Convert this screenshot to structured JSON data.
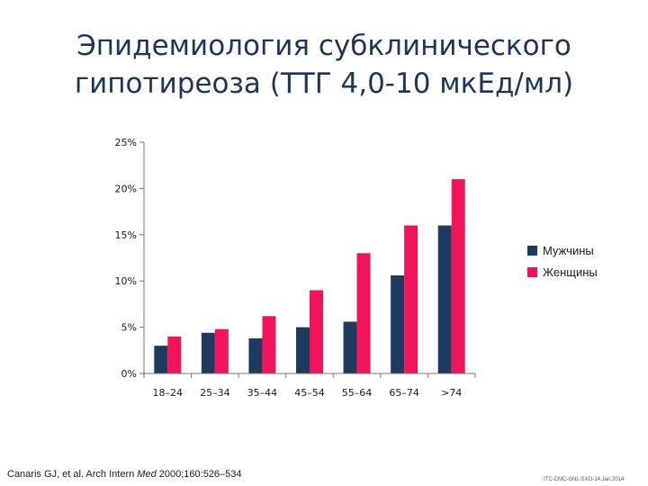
{
  "title": {
    "line1": "Эпидемиология субклинического",
    "line2": "гипотиреоза (ТТГ 4,0-10 мкЕд/мл)"
  },
  "chart_data": {
    "type": "bar",
    "categories": [
      "18–24",
      "25–34",
      "35–44",
      "45–54",
      "55–64",
      "65–74",
      ">74"
    ],
    "series": [
      {
        "name": "Мужчины",
        "color": "#1f3a5f",
        "values": [
          3.0,
          4.4,
          3.8,
          5.0,
          5.6,
          10.6,
          16.0
        ]
      },
      {
        "name": "Женщины",
        "color": "#f0145a",
        "values": [
          4.0,
          4.8,
          6.2,
          9.0,
          13.0,
          16.0,
          21.0
        ]
      }
    ],
    "y_ticks": [
      "0%",
      "5%",
      "10%",
      "15%",
      "20%",
      "25%"
    ],
    "ylim": [
      0,
      25
    ],
    "legend_position": "right"
  },
  "citation": {
    "before": "Canaris GJ, et al. Arch Intern ",
    "journal": "Med",
    "after": " 2000;160:526–534"
  },
  "code": "ITC-CMC-GNL-SXO-14.Jan.2014"
}
